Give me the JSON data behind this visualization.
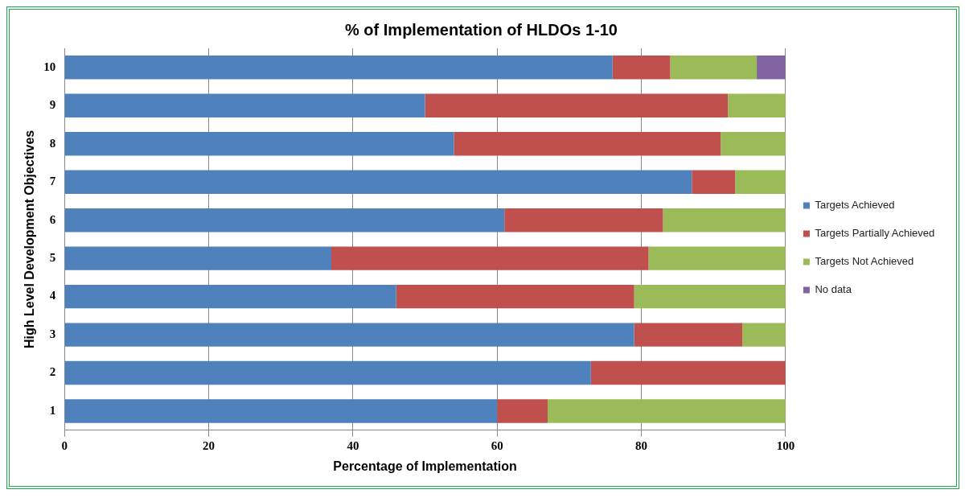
{
  "chart_data": {
    "type": "bar",
    "orientation": "horizontal",
    "stacked": true,
    "title": "% of Implementation of HLDOs 1-10",
    "xlabel": "Percentage of Implementation",
    "ylabel": "High Level Development Objectives",
    "categories": [
      "10",
      "9",
      "8",
      "7",
      "6",
      "5",
      "4",
      "3",
      "2",
      "1"
    ],
    "series": [
      {
        "name": "Targets Achieved",
        "color": "#4f81bd",
        "values": [
          76,
          50,
          54,
          87,
          61,
          37,
          46,
          79,
          73,
          60
        ]
      },
      {
        "name": "Targets Partially Achieved",
        "color": "#c0504d",
        "values": [
          8,
          42,
          37,
          6,
          22,
          44,
          33,
          15,
          27,
          7
        ]
      },
      {
        "name": "Targets Not Achieved",
        "color": "#9bbb59",
        "values": [
          12,
          8,
          9,
          7,
          17,
          19,
          21,
          6,
          null,
          33
        ]
      },
      {
        "name": "No data",
        "color": "#8064a2",
        "values": [
          4,
          null,
          null,
          null,
          null,
          null,
          null,
          null,
          null,
          null
        ]
      }
    ],
    "xlim": [
      0,
      100
    ],
    "xticks": [
      0,
      20,
      40,
      60,
      80,
      100
    ],
    "grid": "x",
    "legend": "right"
  }
}
